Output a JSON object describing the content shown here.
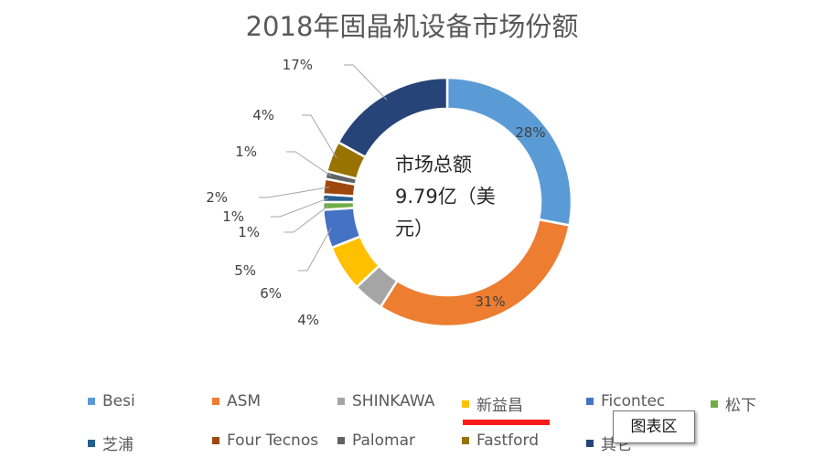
{
  "chart_data": {
    "type": "pie",
    "title": "2018年固晶机设备市场份额",
    "center_label_line1": "市场总额",
    "center_label_line2": "9.79亿（美",
    "center_label_line3": "元）",
    "series": [
      {
        "name": "Besi",
        "value": 28,
        "label": "28%",
        "color": "#5b9bd5"
      },
      {
        "name": "ASM",
        "value": 31,
        "label": "31%",
        "color": "#ed7d31"
      },
      {
        "name": "SHINKAWA",
        "value": 4,
        "label": "4%",
        "color": "#a5a5a5"
      },
      {
        "name": "新益昌",
        "value": 6,
        "label": "6%",
        "color": "#ffc000"
      },
      {
        "name": "Ficontec",
        "value": 5,
        "label": "5%",
        "color": "#4472c4"
      },
      {
        "name": "松下",
        "value": 1,
        "label": "1%",
        "color": "#70ad47"
      },
      {
        "name": "芝浦",
        "value": 1,
        "label": "1%",
        "color": "#255e91"
      },
      {
        "name": "Four Tecnos",
        "value": 2,
        "label": "2%",
        "color": "#9e480e"
      },
      {
        "name": "Palomar",
        "value": 1,
        "label": "1%",
        "color": "#636363"
      },
      {
        "name": "Fastford",
        "value": 4,
        "label": "4%",
        "color": "#997300"
      },
      {
        "name": "其它",
        "value": 17,
        "label": "17%",
        "color": "#264478"
      }
    ]
  },
  "tooltip": {
    "text": "图表区"
  }
}
